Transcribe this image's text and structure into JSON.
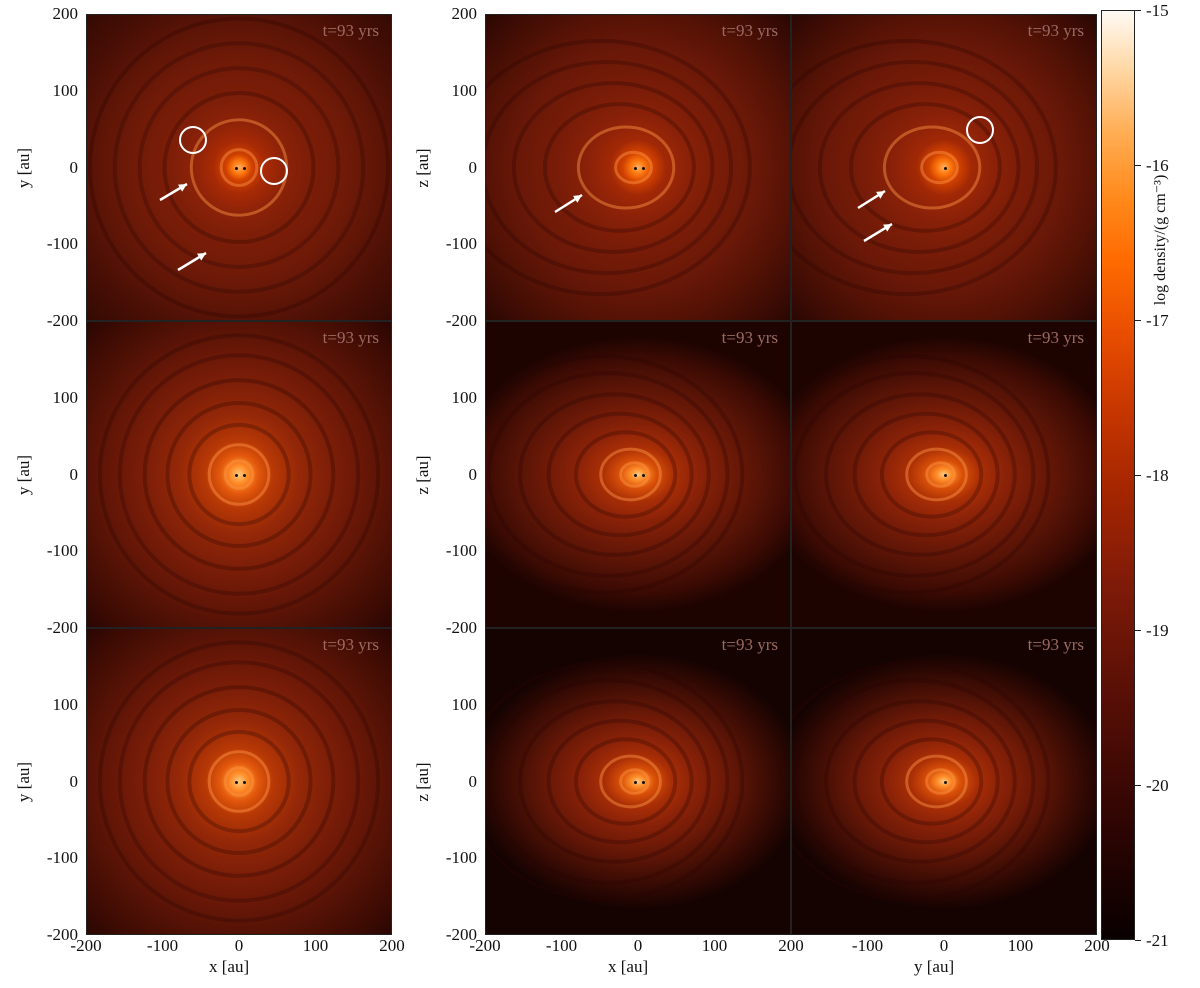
{
  "panel_time": "t=93 yrs",
  "axis_titles": {
    "y_au": "y [au]",
    "z_au": "z [au]",
    "x_au": "x [au]"
  },
  "axis_ticks": {
    "vertical": [
      "200",
      "100",
      "0",
      "-100",
      "-200"
    ],
    "horizontal": [
      "-200",
      "-100",
      "0",
      "100",
      "200"
    ]
  },
  "colorbar": {
    "title": "log density/(g cm⁻³)",
    "tick_labels": [
      "-15",
      "-16",
      "-17",
      "-18",
      "-19",
      "-20",
      "-21"
    ],
    "range": [
      -21,
      -15
    ],
    "colormap": [
      "#090000",
      "#3a0704",
      "#821b08",
      "#c73600",
      "#ff6a00",
      "#ffae55",
      "#fffaf4"
    ]
  },
  "panel_views": [
    [
      "x-y",
      "x-z",
      "y-z"
    ],
    [
      "x-y",
      "x-z",
      "y-z"
    ],
    [
      "x-y",
      "x-z",
      "y-z"
    ]
  ],
  "colors": {
    "marker": "#ffffff",
    "time_label": "#9a6a60",
    "sink": "#111111"
  }
}
